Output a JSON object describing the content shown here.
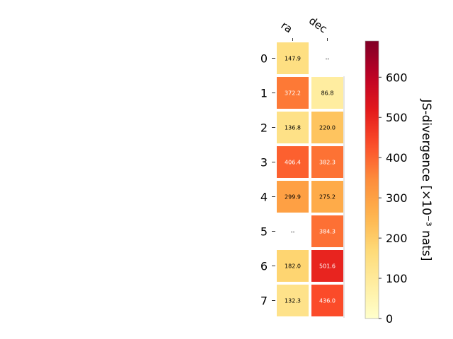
{
  "chart_data": {
    "type": "heatmap",
    "columns": [
      "ra",
      "dec"
    ],
    "rows": [
      "0",
      "1",
      "2",
      "3",
      "4",
      "5",
      "6",
      "7"
    ],
    "values": [
      [
        147.9,
        null
      ],
      [
        372.2,
        86.8
      ],
      [
        136.8,
        220.0
      ],
      [
        406.4,
        382.3
      ],
      [
        299.9,
        275.2
      ],
      [
        null,
        384.3
      ],
      [
        182.0,
        501.6
      ],
      [
        132.3,
        436.0
      ]
    ],
    "missing_label": "--",
    "colorbar": {
      "label": "JS-divergence [×10⁻³ nats]",
      "range": [
        0,
        690
      ],
      "ticks": [
        "0",
        "100",
        "200",
        "300",
        "400",
        "500",
        "600"
      ],
      "colormap": "YlOrRd"
    }
  }
}
